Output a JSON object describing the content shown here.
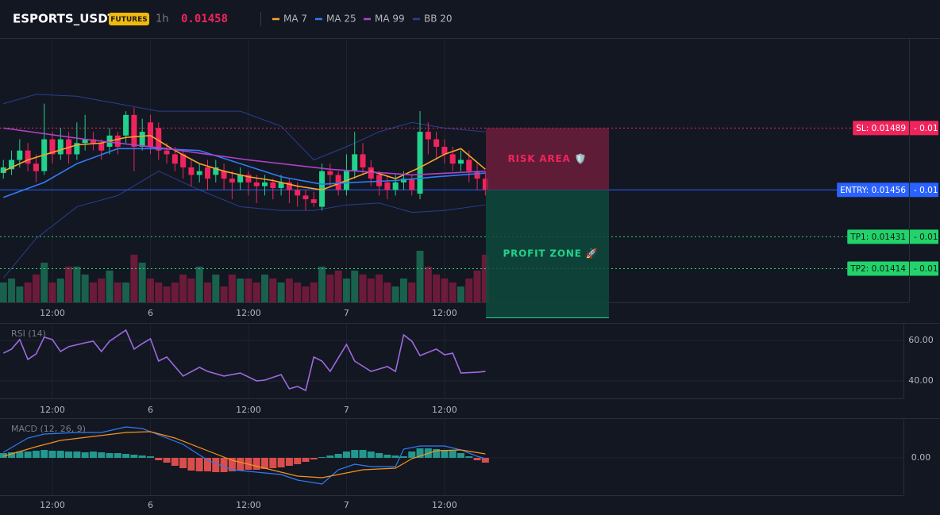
{
  "header": {
    "symbol": "ESPORTS_USDT",
    "badge": "FUTURES",
    "interval": "1h",
    "price": 0.01458
  },
  "chart_data": [
    {
      "type": "candlestick",
      "up_color": "#22d18b",
      "down_color": "#f0245c",
      "ylim": [
        0.01396,
        0.01537
      ],
      "volume_lim": [
        0,
        100
      ],
      "xticks": [
        {
          "value": 6,
          "label": "12:00"
        },
        {
          "value": 18,
          "label": "6"
        },
        {
          "value": 30,
          "label": "12:00"
        },
        {
          "value": 42,
          "label": "7"
        },
        {
          "value": 54,
          "label": "12:00"
        }
      ],
      "open": [
        0.01465,
        0.01467,
        0.01472,
        0.01477,
        0.0147,
        0.01466,
        0.01483,
        0.01475,
        0.01483,
        0.01475,
        0.01481,
        0.01483,
        0.01481,
        0.01479,
        0.01485,
        0.01485,
        0.01496,
        0.01479,
        0.01492,
        0.01489,
        0.01477,
        0.01475,
        0.01475,
        0.01468,
        0.01464,
        0.01468,
        0.01464,
        0.01466,
        0.01462,
        0.0146,
        0.01464,
        0.0146,
        0.01458,
        0.0146,
        0.01457,
        0.0146,
        0.01456,
        0.01453,
        0.01451,
        0.01447,
        0.01466,
        0.01464,
        0.01456,
        0.01466,
        0.01475,
        0.01468,
        0.01464,
        0.0146,
        0.01456,
        0.0146,
        0.01462,
        0.01454,
        0.01487,
        0.01483,
        0.01479,
        0.01475,
        0.0147,
        0.01472,
        0.01466,
        0.01462
      ],
      "high": [
        0.01472,
        0.01477,
        0.01483,
        0.01481,
        0.01475,
        0.01502,
        0.01487,
        0.01489,
        0.01487,
        0.01492,
        0.01496,
        0.01487,
        0.01483,
        0.01489,
        0.01487,
        0.01498,
        0.015,
        0.01494,
        0.01496,
        0.01492,
        0.01481,
        0.01479,
        0.01477,
        0.01472,
        0.0147,
        0.01472,
        0.01472,
        0.0147,
        0.01466,
        0.01468,
        0.01466,
        0.01464,
        0.01464,
        0.01462,
        0.01464,
        0.01462,
        0.0146,
        0.01456,
        0.01455,
        0.0147,
        0.0147,
        0.01466,
        0.01475,
        0.01487,
        0.01481,
        0.01472,
        0.01466,
        0.01464,
        0.01464,
        0.01466,
        0.01464,
        0.01498,
        0.01492,
        0.01487,
        0.01483,
        0.01479,
        0.01477,
        0.01477,
        0.0147,
        0.01466
      ],
      "low": [
        0.01462,
        0.01464,
        0.01468,
        0.01466,
        0.0146,
        0.01464,
        0.0147,
        0.01472,
        0.0147,
        0.01472,
        0.01477,
        0.01477,
        0.01472,
        0.01475,
        0.01475,
        0.01481,
        0.01466,
        0.01477,
        0.01475,
        0.01472,
        0.0147,
        0.01466,
        0.01462,
        0.01458,
        0.0146,
        0.01456,
        0.0146,
        0.01456,
        0.01451,
        0.01456,
        0.01453,
        0.01449,
        0.01453,
        0.01451,
        0.01453,
        0.01449,
        0.01447,
        0.01445,
        0.01447,
        0.01445,
        0.01458,
        0.01453,
        0.01453,
        0.01462,
        0.01464,
        0.01458,
        0.01453,
        0.01451,
        0.01453,
        0.01456,
        0.01453,
        0.01451,
        0.01475,
        0.01472,
        0.0147,
        0.01466,
        0.01466,
        0.0146,
        0.01456,
        0.01453
      ],
      "close": [
        0.01468,
        0.01472,
        0.01477,
        0.0147,
        0.01466,
        0.01483,
        0.01475,
        0.01483,
        0.01475,
        0.01481,
        0.01483,
        0.01481,
        0.01477,
        0.01485,
        0.01479,
        0.01496,
        0.01479,
        0.01487,
        0.01479,
        0.01477,
        0.01475,
        0.0147,
        0.01468,
        0.01464,
        0.01466,
        0.01462,
        0.01468,
        0.01462,
        0.0146,
        0.01464,
        0.0146,
        0.01458,
        0.0146,
        0.01457,
        0.0146,
        0.01456,
        0.01453,
        0.01451,
        0.01449,
        0.01466,
        0.01464,
        0.01456,
        0.01466,
        0.01475,
        0.01468,
        0.01462,
        0.01458,
        0.01456,
        0.0146,
        0.01462,
        0.01456,
        0.01487,
        0.01483,
        0.01479,
        0.01475,
        0.0147,
        0.01472,
        0.01466,
        0.01462,
        0.01456
      ],
      "volume": [
        25,
        30,
        20,
        25,
        35,
        50,
        25,
        30,
        45,
        45,
        35,
        25,
        30,
        40,
        25,
        25,
        60,
        50,
        30,
        25,
        20,
        25,
        35,
        30,
        45,
        25,
        35,
        20,
        35,
        30,
        30,
        25,
        35,
        30,
        25,
        30,
        25,
        20,
        25,
        45,
        35,
        40,
        30,
        40,
        35,
        30,
        35,
        25,
        20,
        30,
        25,
        65,
        45,
        35,
        30,
        25,
        20,
        30,
        40,
        60
      ],
      "series": [
        {
          "name": "MA 7",
          "color": "#f7a52b",
          "x": [
            0,
            3,
            6,
            9,
            12,
            15,
            18,
            21,
            24,
            27,
            30,
            33,
            36,
            39,
            42,
            45,
            48,
            51,
            54,
            56,
            59
          ],
          "values": [
            0.01466,
            0.01472,
            0.01476,
            0.0148,
            0.01481,
            0.01484,
            0.01485,
            0.01477,
            0.0147,
            0.01466,
            0.01463,
            0.01461,
            0.01458,
            0.01456,
            0.01461,
            0.01466,
            0.01462,
            0.01468,
            0.01475,
            0.01478,
            0.01467
          ]
        },
        {
          "name": "MA 25",
          "color": "#2f7cf6",
          "x": [
            0,
            5,
            9,
            14,
            19,
            24,
            29,
            34,
            39,
            43,
            48,
            53,
            59
          ],
          "values": [
            0.01452,
            0.0146,
            0.0147,
            0.01478,
            0.01478,
            0.01477,
            0.0147,
            0.01463,
            0.01459,
            0.0146,
            0.01461,
            0.01463,
            0.01465
          ]
        },
        {
          "name": "MA 99",
          "color": "#b042c8",
          "x": [
            0,
            10,
            20,
            30,
            40,
            50,
            59
          ],
          "values": [
            0.01489,
            0.01483,
            0.01478,
            0.01472,
            0.01467,
            0.01464,
            0.01466
          ]
        },
        {
          "name": "BB 20",
          "color": "#2a3f8f",
          "x": [
            0,
            4,
            9,
            14,
            19,
            24,
            29,
            34,
            38,
            42,
            46,
            50,
            54,
            59
          ],
          "upper": [
            0.01502,
            0.01507,
            0.01506,
            0.01502,
            0.01498,
            0.01498,
            0.01498,
            0.0149,
            0.01472,
            0.01479,
            0.01487,
            0.01492,
            0.01489,
            0.01487
          ],
          "lower": [
            0.01409,
            0.0143,
            0.01447,
            0.01453,
            0.01466,
            0.01456,
            0.01447,
            0.01445,
            0.01445,
            0.01448,
            0.01449,
            0.01444,
            0.01445,
            0.01448
          ]
        }
      ],
      "levels": [
        {
          "value": 0.01489,
          "label": "SL: 0.01489",
          "offset": "- 0.01",
          "color": "#f0245c",
          "style": "dotted"
        },
        {
          "value": 0.01456,
          "label": "ENTRY: 0.01456",
          "offset": "- 0.01",
          "color": "#2962ff",
          "style": "solid"
        },
        {
          "value": 0.01431,
          "label": "TP1: 0.01431",
          "offset": "- 0.01",
          "color": "#22d36b",
          "style": "dotted"
        },
        {
          "value": 0.01414,
          "label": "TP2: 0.01414",
          "offset": "- 0.01",
          "color": "#22d36b",
          "style": "dotted"
        }
      ],
      "risk_label": "RISK AREA 🛡️",
      "profit_label": "PROFIT ZONE 🚀"
    },
    {
      "type": "line",
      "title": "RSI (14)",
      "color": "#9c6ade",
      "ylim": [
        31.4,
        68.2
      ],
      "yticks": [
        {
          "value": 60,
          "label": "60.00"
        },
        {
          "value": 40,
          "label": "40.00"
        }
      ],
      "xticks": [
        {
          "value": 6,
          "label": "12:00"
        },
        {
          "value": 18,
          "label": "6"
        },
        {
          "value": 30,
          "label": "12:00"
        },
        {
          "value": 42,
          "label": "7"
        },
        {
          "value": 54,
          "label": "12:00"
        }
      ],
      "x": [
        0,
        1,
        2,
        3,
        4,
        5,
        6,
        7,
        8,
        10,
        11,
        12,
        13,
        15,
        16,
        17,
        18,
        19,
        20,
        22,
        24,
        25,
        27,
        29,
        31,
        32,
        34,
        35,
        36,
        37,
        38,
        39,
        40,
        42,
        43,
        45,
        46,
        47,
        48,
        49,
        50,
        51,
        53,
        54,
        55,
        56,
        58,
        59
      ],
      "values": [
        53.7,
        55.7,
        60.4,
        50.6,
        53.3,
        61.6,
        60.4,
        54.5,
        56.9,
        58.8,
        59.6,
        54.5,
        59.6,
        65.1,
        55.7,
        58.4,
        60.8,
        49.8,
        51.8,
        42.4,
        46.7,
        44.7,
        42.4,
        43.9,
        40.0,
        40.4,
        43.1,
        36.1,
        37.3,
        35.3,
        51.8,
        49.8,
        44.7,
        58.0,
        49.8,
        44.7,
        45.9,
        47.1,
        44.7,
        62.7,
        59.6,
        52.5,
        55.7,
        52.9,
        53.7,
        43.9,
        44.3,
        44.7
      ]
    },
    {
      "type": "macd",
      "title": "MACD (12, 26, 9)",
      "pos_color": "#26a69a",
      "neg_color": "#ef5350",
      "ylim": [
        -9.4e-05,
        9.8e-05
      ],
      "yticks": [
        {
          "value": 0,
          "label": "0.00"
        }
      ],
      "xticks": [
        {
          "value": 6,
          "label": "12:00"
        },
        {
          "value": 18,
          "label": "6"
        },
        {
          "value": 30,
          "label": "12:00"
        },
        {
          "value": 42,
          "label": "7"
        },
        {
          "value": 54,
          "label": "12:00"
        }
      ],
      "histogram": [
        1.2e-05,
        1.4e-05,
        1.6e-05,
        1.6e-05,
        1.8e-05,
        2e-05,
        1.8e-05,
        1.8e-05,
        1.6e-05,
        1.6e-05,
        1.4e-05,
        1.6e-05,
        1.4e-05,
        1.2e-05,
        1.2e-05,
        1e-05,
        8e-06,
        6e-06,
        4e-06,
        -6e-06,
        -1.2e-05,
        -2e-05,
        -2.6e-05,
        -3.2e-05,
        -3.4e-05,
        -3.4e-05,
        -3.6e-05,
        -3.6e-05,
        -3.4e-05,
        -3.2e-05,
        -3e-05,
        -3e-05,
        -2.8e-05,
        -2.6e-05,
        -2.4e-05,
        -2e-05,
        -1.6e-05,
        -1e-05,
        -4e-06,
        2e-06,
        6e-06,
        1e-05,
        1.6e-05,
        2e-05,
        2e-05,
        1.6e-05,
        1.2e-05,
        8e-06,
        6e-06,
        4e-06,
        1.6e-05,
        2.4e-05,
        2.4e-05,
        2.2e-05,
        2e-05,
        1.8e-05,
        1.2e-05,
        4e-06,
        -6e-06,
        -1.2e-05
      ],
      "macd": {
        "color": "#2f7cf6",
        "x": [
          0,
          3,
          5,
          9,
          12,
          15,
          17,
          19,
          22,
          25,
          28,
          31,
          34,
          36,
          39,
          41,
          43,
          45,
          48,
          49,
          51,
          54,
          56,
          58,
          59
        ],
        "values": [
          1.4e-05,
          5e-05,
          6e-05,
          6.4e-05,
          6.4e-05,
          7.8e-05,
          7.4e-05,
          5.8e-05,
          3.4e-05,
          -6e-06,
          -3e-05,
          -3.6e-05,
          -4.2e-05,
          -5.6e-05,
          -6.6e-05,
          -3e-05,
          -1.6e-05,
          -2.2e-05,
          -2.2e-05,
          2.2e-05,
          3e-05,
          3e-05,
          2e-05,
          4e-06,
          -2e-06
        ]
      },
      "signal": {
        "color": "#f7931a",
        "x": [
          0,
          4,
          7,
          11,
          15,
          18,
          21,
          25,
          28,
          32,
          36,
          39,
          41,
          44,
          48,
          50,
          53,
          56,
          59
        ],
        "values": [
          4e-06,
          2.8e-05,
          4.4e-05,
          5.4e-05,
          6.4e-05,
          6.6e-05,
          5e-05,
          1.8e-05,
          -6e-06,
          -2.6e-05,
          -4.6e-05,
          -5e-05,
          -4.2e-05,
          -3e-05,
          -2.6e-05,
          -2e-06,
          1.8e-05,
          2e-05,
          1e-05
        ]
      }
    }
  ]
}
